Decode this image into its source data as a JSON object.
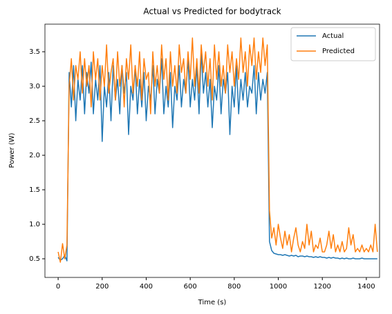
{
  "chart_data": {
    "type": "line",
    "title": "Actual vs Predicted for bodytrack",
    "x_label": "Time (s)",
    "y_label": "Power (W)",
    "x": [
      0,
      10,
      20,
      30,
      40,
      50,
      60,
      70,
      80,
      90,
      100,
      110,
      120,
      130,
      140,
      150,
      160,
      170,
      180,
      190,
      200,
      210,
      220,
      230,
      240,
      250,
      260,
      270,
      280,
      290,
      300,
      310,
      320,
      330,
      340,
      350,
      360,
      370,
      380,
      390,
      400,
      410,
      420,
      430,
      440,
      450,
      460,
      470,
      480,
      490,
      500,
      510,
      520,
      530,
      540,
      550,
      560,
      570,
      580,
      590,
      600,
      610,
      620,
      630,
      640,
      650,
      660,
      670,
      680,
      690,
      700,
      710,
      720,
      730,
      740,
      750,
      760,
      770,
      780,
      790,
      800,
      810,
      820,
      830,
      840,
      850,
      860,
      870,
      880,
      890,
      900,
      910,
      920,
      930,
      940,
      950,
      960,
      970,
      980,
      990,
      1000,
      1010,
      1020,
      1030,
      1040,
      1050,
      1060,
      1070,
      1080,
      1090,
      1100,
      1110,
      1120,
      1130,
      1140,
      1150,
      1160,
      1170,
      1180,
      1190,
      1200,
      1210,
      1220,
      1230,
      1240,
      1250,
      1260,
      1270,
      1280,
      1290,
      1300,
      1310,
      1320,
      1330,
      1340,
      1350,
      1360,
      1370,
      1380,
      1390,
      1400,
      1410,
      1420,
      1430,
      1440,
      1450
    ],
    "series": [
      {
        "name": "Actual",
        "color": "#1f77b4",
        "values": [
          0.52,
          0.48,
          0.5,
          0.55,
          0.47,
          3.2,
          2.7,
          3.3,
          2.5,
          3.1,
          2.8,
          3.3,
          2.6,
          3.2,
          2.9,
          3.35,
          2.6,
          3.1,
          2.8,
          3.3,
          2.2,
          3.0,
          2.7,
          3.2,
          2.5,
          3.3,
          2.8,
          3.1,
          2.6,
          3.3,
          2.9,
          3.2,
          2.3,
          3.0,
          2.8,
          3.3,
          2.6,
          3.1,
          2.7,
          3.2,
          2.5,
          3.0,
          2.8,
          3.3,
          2.6,
          3.1,
          2.9,
          3.4,
          2.6,
          3.0,
          2.7,
          3.2,
          2.4,
          3.0,
          2.8,
          3.3,
          2.7,
          3.1,
          2.9,
          3.4,
          2.7,
          3.1,
          2.8,
          3.3,
          2.6,
          3.5,
          2.9,
          3.2,
          2.7,
          3.1,
          2.4,
          3.0,
          2.8,
          3.3,
          2.6,
          3.1,
          2.9,
          3.2,
          2.3,
          3.0,
          2.7,
          3.3,
          2.6,
          3.1,
          2.8,
          3.2,
          2.7,
          3.0,
          2.9,
          3.3,
          2.6,
          3.2,
          2.8,
          3.1,
          2.9,
          3.2,
          0.75,
          0.62,
          0.58,
          0.57,
          0.56,
          0.56,
          0.55,
          0.56,
          0.55,
          0.54,
          0.55,
          0.54,
          0.55,
          0.53,
          0.54,
          0.54,
          0.53,
          0.54,
          0.53,
          0.53,
          0.52,
          0.53,
          0.52,
          0.53,
          0.52,
          0.52,
          0.51,
          0.52,
          0.51,
          0.52,
          0.51,
          0.51,
          0.5,
          0.51,
          0.5,
          0.51,
          0.5,
          0.5,
          0.51,
          0.5,
          0.5,
          0.5,
          0.51,
          0.5,
          0.5,
          0.5,
          0.5,
          0.5,
          0.5,
          0.5
        ]
      },
      {
        "name": "Predicted",
        "color": "#ff7f0e",
        "values": [
          0.6,
          0.45,
          0.72,
          0.5,
          0.7,
          3.0,
          3.4,
          2.8,
          3.3,
          3.1,
          3.5,
          2.9,
          3.4,
          3.0,
          3.3,
          2.7,
          3.5,
          3.1,
          3.4,
          2.8,
          3.3,
          3.0,
          3.6,
          2.9,
          3.2,
          3.4,
          2.8,
          3.5,
          3.0,
          3.3,
          2.7,
          3.4,
          3.1,
          3.6,
          2.9,
          3.3,
          3.0,
          3.5,
          2.8,
          3.4,
          3.1,
          3.2,
          2.6,
          3.5,
          3.0,
          3.3,
          2.9,
          3.6,
          3.1,
          3.4,
          2.8,
          3.5,
          3.0,
          3.3,
          2.9,
          3.6,
          3.2,
          3.4,
          2.9,
          3.5,
          3.1,
          3.7,
          3.0,
          3.4,
          2.9,
          3.6,
          3.2,
          3.5,
          3.0,
          3.4,
          2.8,
          3.6,
          3.1,
          3.5,
          3.0,
          3.3,
          2.9,
          3.6,
          3.2,
          3.5,
          3.0,
          3.4,
          3.1,
          3.7,
          3.2,
          3.5,
          3.0,
          3.6,
          3.3,
          3.7,
          3.1,
          3.5,
          3.2,
          3.7,
          3.3,
          3.6,
          1.2,
          0.8,
          0.95,
          0.7,
          1.0,
          0.8,
          0.65,
          0.9,
          0.7,
          0.85,
          0.6,
          0.8,
          0.95,
          0.7,
          0.6,
          0.75,
          0.65,
          1.0,
          0.7,
          0.9,
          0.6,
          0.7,
          0.65,
          0.8,
          0.6,
          0.6,
          0.7,
          0.9,
          0.65,
          0.85,
          0.6,
          0.7,
          0.6,
          0.75,
          0.6,
          0.65,
          0.95,
          0.7,
          0.85,
          0.6,
          0.65,
          0.6,
          0.7,
          0.6,
          0.65,
          0.6,
          0.7,
          0.6,
          1.0,
          0.6
        ]
      }
    ],
    "xlim": [
      -60,
      1460
    ],
    "ylim": [
      0.23,
      3.9
    ],
    "xticks": [
      0,
      200,
      400,
      600,
      800,
      1000,
      1200,
      1400
    ],
    "yticks": [
      0.5,
      {
        "value": 1,
        "label": "1.0"
      },
      1.5,
      {
        "value": 2,
        "label": "2.0"
      },
      2.5,
      {
        "value": 3,
        "label": "3.0"
      },
      3.5
    ],
    "legend": "upper right"
  }
}
